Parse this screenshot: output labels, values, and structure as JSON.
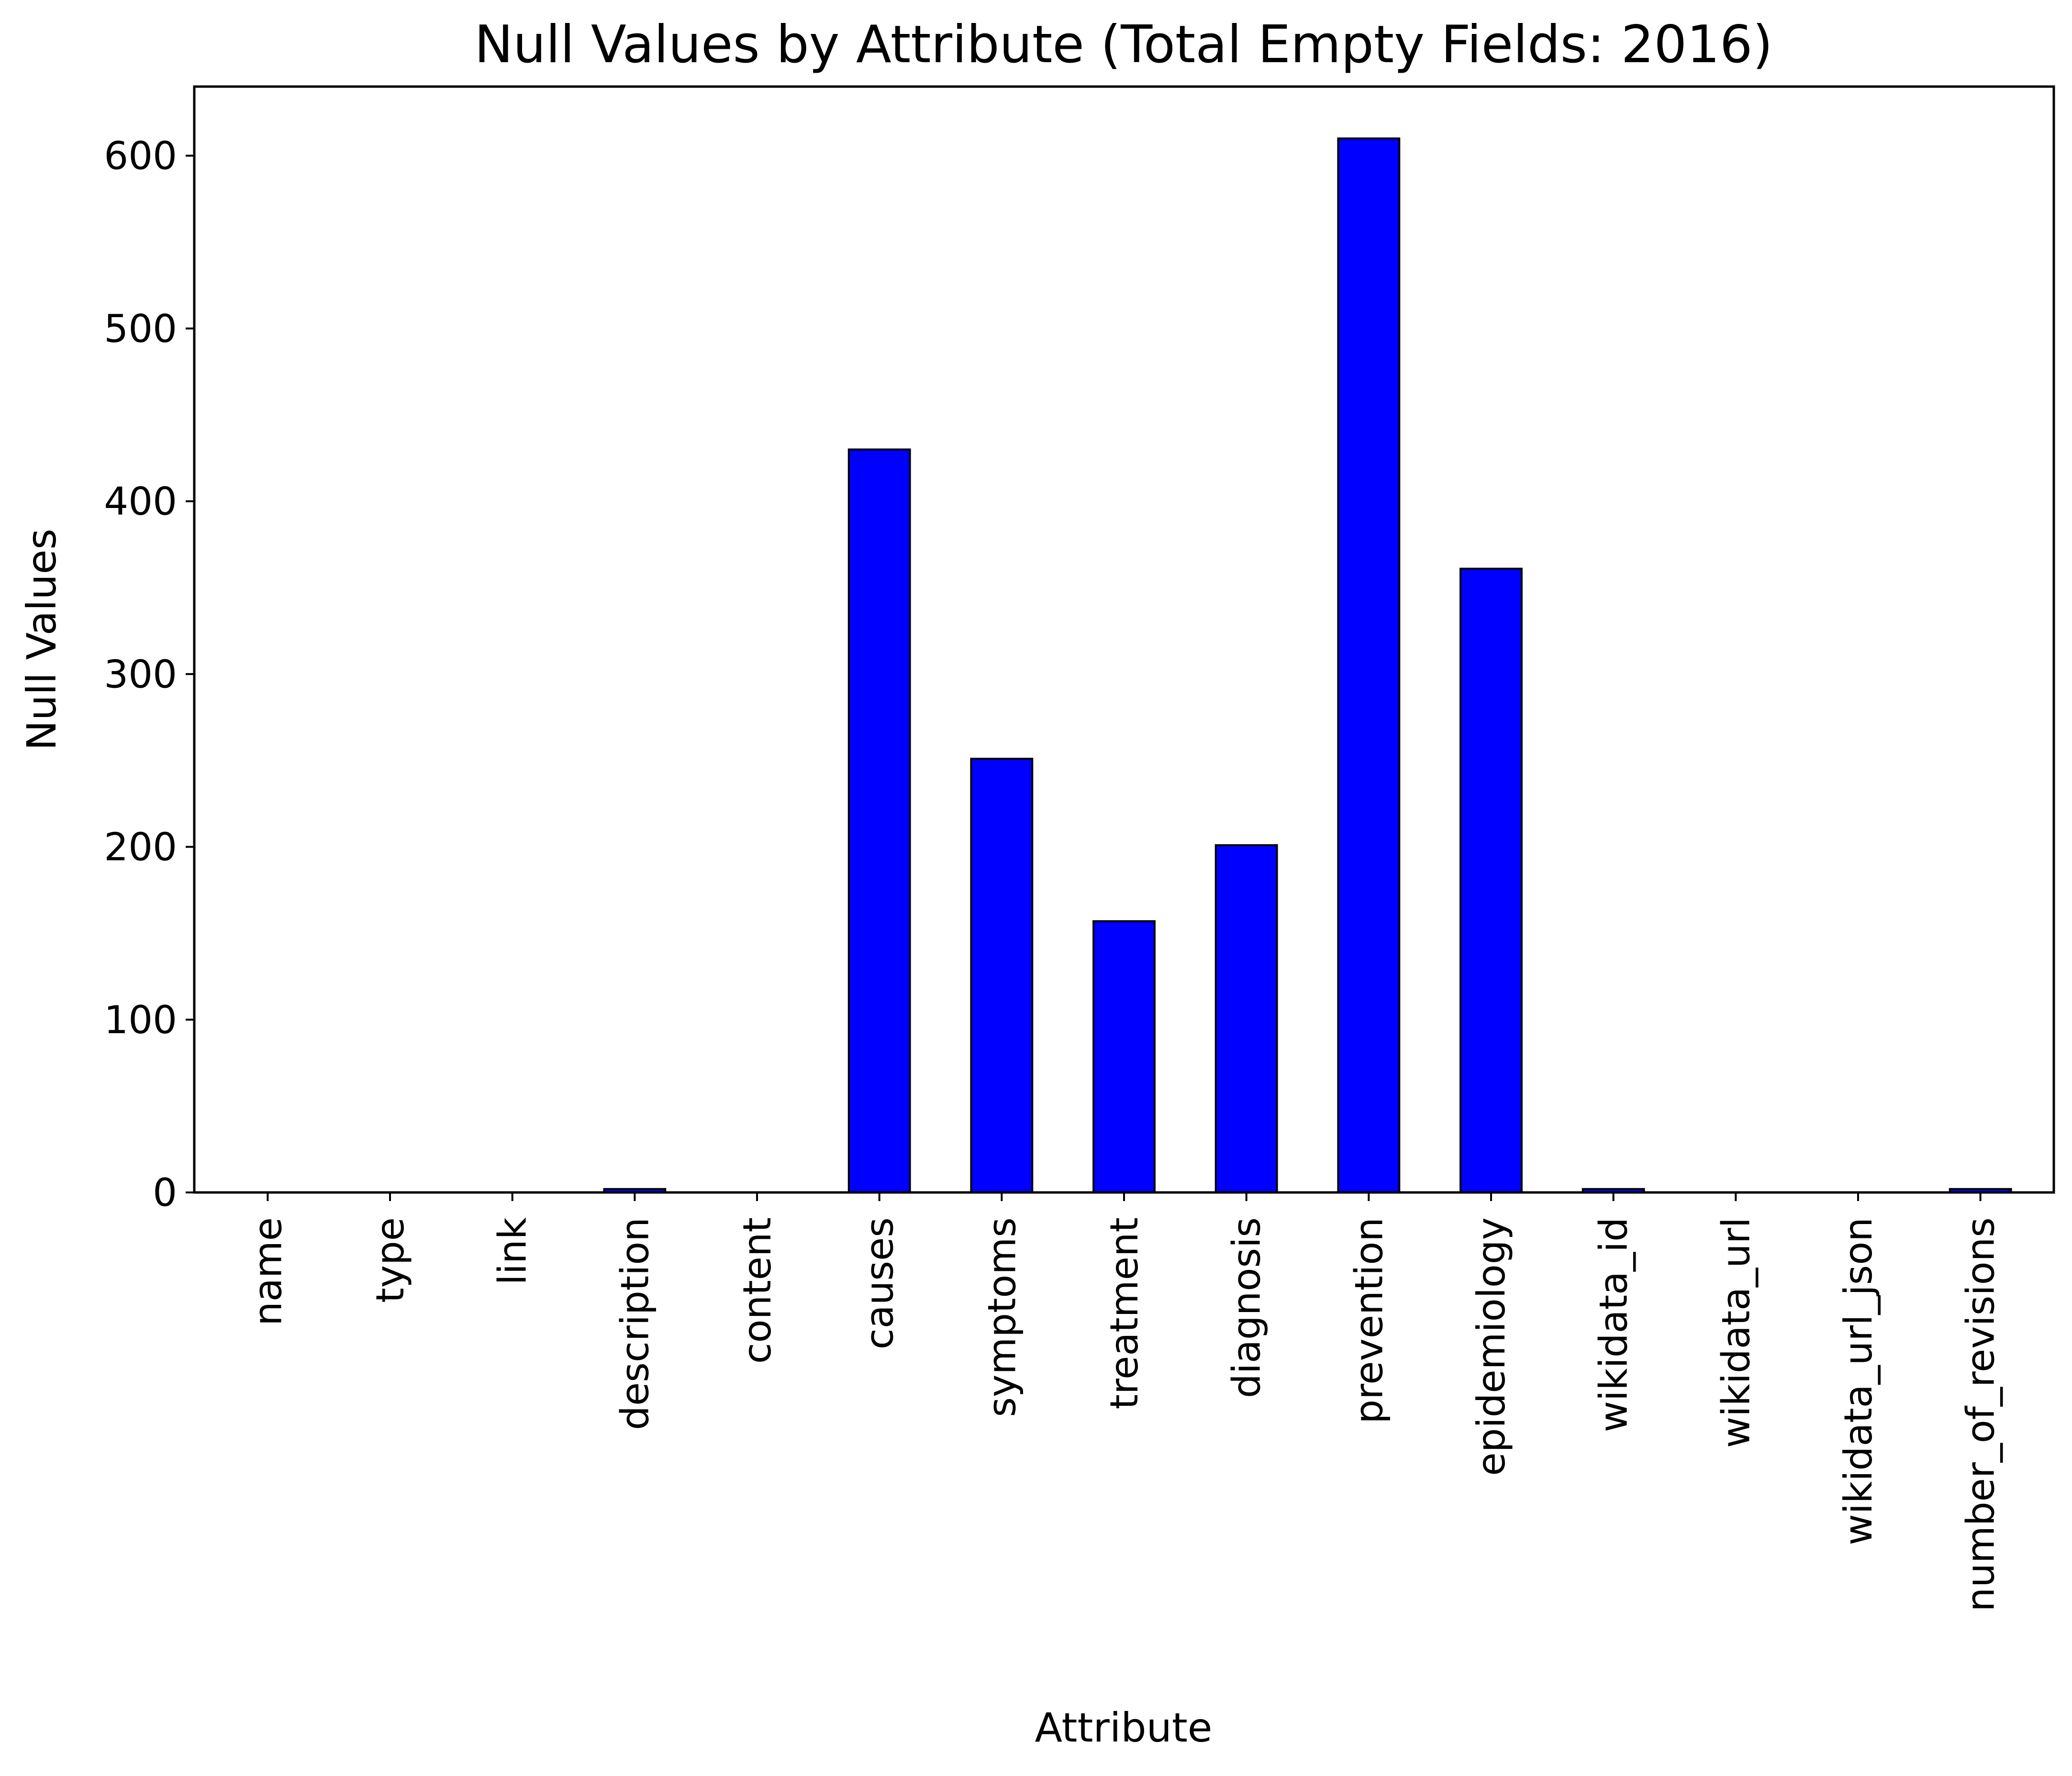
{
  "chart_data": {
    "type": "bar",
    "title": "Null Values by Attribute (Total Empty Fields: 2016)",
    "xlabel": "Attribute",
    "ylabel": "Null Values",
    "categories": [
      "name",
      "type",
      "link",
      "description",
      "content",
      "causes",
      "symptoms",
      "treatment",
      "diagnosis",
      "prevention",
      "epidemiology",
      "wikidata_id",
      "wikidata_url",
      "wikidata_url_json",
      "number_of_revisions"
    ],
    "values": [
      0,
      0,
      0,
      2,
      0,
      430,
      251,
      157,
      201,
      610,
      361,
      2,
      0,
      0,
      2
    ],
    "ylim": [
      0,
      640
    ],
    "yticks": [
      0,
      100,
      200,
      300,
      400,
      500,
      600
    ],
    "bar_color": "#0000ff",
    "edge_color": "#000000",
    "grid": false,
    "legend": false
  }
}
